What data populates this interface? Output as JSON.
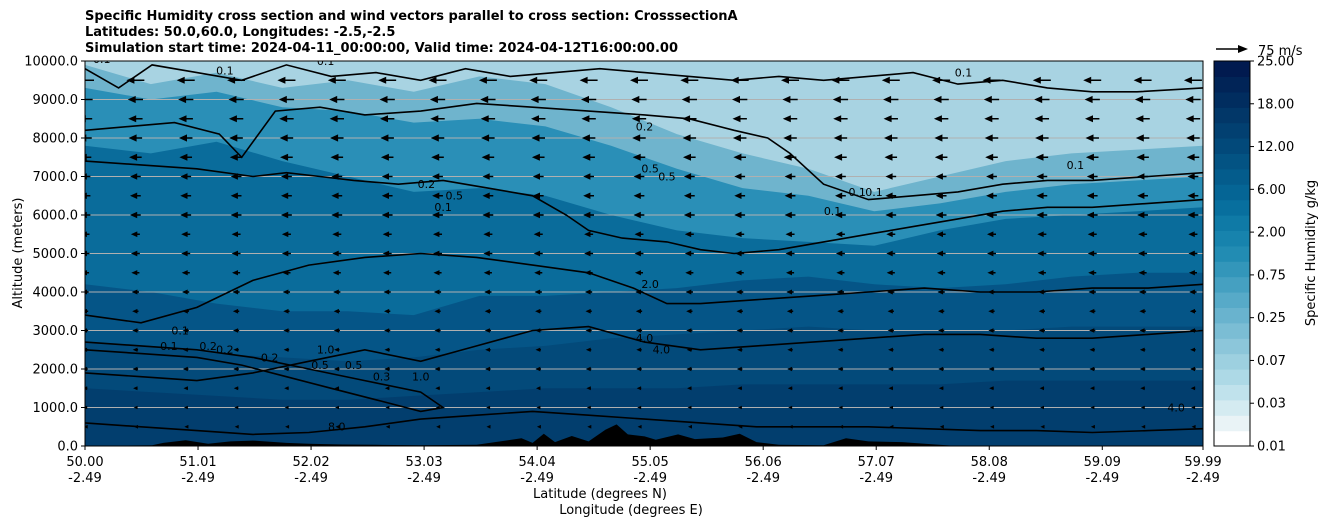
{
  "chart_data": {
    "type": "heatmap",
    "title_lines": [
      "Specific Humidity cross section and wind vectors parallel to cross section: CrosssectionA",
      "Latitudes: 50.0,60.0, Longitudes: -2.5,-2.5",
      "Simulation start time: 2024-04-11_00:00:00, Valid time: 2024-04-12T16:00:00.00"
    ],
    "ylabel": "Altitude (meters)",
    "xlabel_lines": [
      "Latitude (degrees N)",
      "Longitude (degrees E)"
    ],
    "ylim": [
      0,
      10000
    ],
    "yticks": [
      "0.0",
      "1000.0",
      "2000.0",
      "3000.0",
      "4000.0",
      "5000.0",
      "6000.0",
      "7000.0",
      "8000.0",
      "9000.0",
      "10000.0"
    ],
    "xticks": [
      {
        "lat": "50.00",
        "lon": "-2.49"
      },
      {
        "lat": "51.01",
        "lon": "-2.49"
      },
      {
        "lat": "52.02",
        "lon": "-2.49"
      },
      {
        "lat": "53.03",
        "lon": "-2.49"
      },
      {
        "lat": "54.04",
        "lon": "-2.49"
      },
      {
        "lat": "55.05",
        "lon": "-2.49"
      },
      {
        "lat": "56.06",
        "lon": "-2.49"
      },
      {
        "lat": "57.07",
        "lon": "-2.49"
      },
      {
        "lat": "58.08",
        "lon": "-2.49"
      },
      {
        "lat": "59.09",
        "lon": "-2.49"
      },
      {
        "lat": "59.99",
        "lon": "-2.49"
      }
    ],
    "xlim": [
      50.0,
      59.99
    ],
    "grid": "horizontal",
    "colorbar": {
      "label": "Specific Humidity g/kg",
      "tick_labels": [
        "0.01",
        "0.03",
        "0.07",
        "0.25",
        "0.75",
        "2.00",
        "6.00",
        "12.00",
        "18.00",
        "25.00"
      ],
      "colors": [
        "#ffffff",
        "#e9f3f6",
        "#d4ebf1",
        "#c0e2ec",
        "#add9e6",
        "#9dd0e0",
        "#8cc6da",
        "#7bbdd4",
        "#69b3ce",
        "#57aac8",
        "#45a0c1",
        "#3396ba",
        "#228cb3",
        "#1783ad",
        "#0f7aa6",
        "#086f9e",
        "#056595",
        "#045c8c",
        "#035383",
        "#02497a",
        "#024071",
        "#023768",
        "#012d5f",
        "#012457",
        "#011a4f"
      ]
    },
    "wind_reference": "75 m/s",
    "wind_direction": "toward decreasing latitude (southward) at all levels",
    "humidity_layers_g_per_kg": [
      {
        "level": 0.07,
        "alt_m": [
          9900,
          9400,
          9700,
          9300,
          9500,
          9200,
          9600,
          9400,
          8800,
          8100,
          7600,
          7200,
          6600,
          7000,
          7400,
          7600,
          7700,
          7800
        ]
      },
      {
        "level": 0.25,
        "alt_m": [
          9300,
          9000,
          9200,
          8800,
          8700,
          8400,
          8500,
          8300,
          7800,
          7200,
          6700,
          6500,
          6100,
          6300,
          6600,
          6800,
          6900,
          7000
        ]
      },
      {
        "level": 0.75,
        "alt_m": [
          7800,
          7600,
          7900,
          7400,
          7000,
          6600,
          6700,
          6500,
          6000,
          5600,
          5400,
          5300,
          5200,
          5600,
          5900,
          6000,
          6100,
          6200
        ]
      },
      {
        "level": 2.0,
        "alt_m": [
          4200,
          4000,
          3700,
          3500,
          3500,
          3400,
          3900,
          3900,
          4000,
          4100,
          4300,
          4400,
          4200,
          4100,
          4200,
          4400,
          4500,
          4500
        ]
      },
      {
        "level": 4.0,
        "alt_m": [
          2700,
          2600,
          2400,
          2300,
          2200,
          2300,
          2500,
          2600,
          2800,
          2900,
          3000,
          3100,
          3000,
          3000,
          3000,
          3100,
          3100,
          3100
        ]
      },
      {
        "level": 8.0,
        "alt_m": [
          1500,
          1400,
          1300,
          1200,
          1200,
          1300,
          1400,
          1500,
          1500,
          1500,
          1600,
          1600,
          1600,
          1600,
          1700,
          1700,
          1700,
          1700
        ]
      }
    ],
    "contour_lines": [
      {
        "label": "0.1",
        "lat": [
          50.0,
          50.3,
          50.6,
          51.0,
          51.4,
          51.8,
          52.2,
          52.6,
          53.0,
          53.4,
          53.8,
          54.2,
          54.6,
          55.0,
          55.4,
          55.8,
          56.2,
          56.6,
          57.0,
          57.4,
          57.8,
          58.2,
          58.6,
          59.0,
          59.4,
          59.99
        ],
        "alt_m": [
          9800,
          9300,
          9900,
          9700,
          9500,
          9900,
          9600,
          9700,
          9500,
          9800,
          9600,
          9700,
          9800,
          9700,
          9600,
          9500,
          9600,
          9500,
          9600,
          9700,
          9400,
          9500,
          9300,
          9200,
          9200,
          9300
        ]
      },
      {
        "label": "0.2",
        "lat": [
          50.0,
          50.4,
          50.8,
          51.2,
          51.4,
          51.7,
          52.1,
          52.5,
          53.0,
          53.5,
          54.0,
          54.5,
          55.0,
          55.4,
          55.8,
          56.1,
          56.3,
          56.6,
          57.0,
          57.4,
          57.8,
          58.2,
          58.6,
          59.0,
          59.5,
          59.99
        ],
        "alt_m": [
          8200,
          8300,
          8400,
          8100,
          7500,
          8700,
          8800,
          8600,
          8700,
          8900,
          8800,
          8700,
          8600,
          8500,
          8200,
          8000,
          7600,
          6800,
          6400,
          6500,
          6600,
          6800,
          6900,
          6900,
          7000,
          7100
        ]
      },
      {
        "label": "0.5",
        "lat": [
          50.0,
          50.5,
          51.0,
          51.5,
          51.8,
          52.1,
          52.4,
          52.8,
          53.2,
          53.6,
          54.0,
          54.3,
          54.5,
          54.8,
          55.2,
          55.5,
          55.8,
          56.2,
          56.6,
          57.0,
          57.4,
          57.8,
          58.2,
          58.6,
          59.0,
          59.5,
          59.99
        ],
        "alt_m": [
          7400,
          7300,
          7200,
          7000,
          7100,
          7000,
          6900,
          6800,
          6900,
          6700,
          6500,
          6000,
          5600,
          5400,
          5300,
          5100,
          5000,
          5100,
          5300,
          5500,
          5700,
          5900,
          6100,
          6200,
          6200,
          6300,
          6400
        ]
      },
      {
        "label": "2.0",
        "lat": [
          50.0,
          50.5,
          51.0,
          51.5,
          52.0,
          52.5,
          53.0,
          53.5,
          54.0,
          54.5,
          54.9,
          55.2,
          55.5,
          56.0,
          56.5,
          57.0,
          57.5,
          58.0,
          58.5,
          59.0,
          59.5,
          59.99
        ],
        "alt_m": [
          3400,
          3200,
          3600,
          4300,
          4700,
          4900,
          5000,
          4900,
          4700,
          4500,
          4100,
          3700,
          3700,
          3800,
          3900,
          4000,
          4100,
          4000,
          4000,
          4100,
          4100,
          4200
        ]
      },
      {
        "label": "4.0",
        "lat": [
          50.0,
          50.5,
          51.0,
          51.5,
          52.0,
          52.5,
          53.0,
          53.5,
          54.0,
          54.5,
          55.0,
          55.5,
          56.0,
          56.5,
          57.0,
          57.5,
          58.0,
          58.5,
          59.0,
          59.5,
          59.99
        ],
        "alt_m": [
          1900,
          1800,
          1700,
          1900,
          2200,
          2500,
          2200,
          2600,
          3000,
          3100,
          2700,
          2500,
          2600,
          2700,
          2800,
          2900,
          2900,
          2800,
          2800,
          2900,
          3000
        ]
      },
      {
        "label": "1.0",
        "lat": [
          50.0,
          50.5,
          51.0,
          51.5,
          52.0,
          52.5,
          53.0,
          53.2,
          53.0,
          52.6,
          52.2,
          51.8,
          51.4,
          51.0,
          50.5,
          50.0
        ],
        "alt_m": [
          2700,
          2600,
          2500,
          2300,
          2000,
          1700,
          1400,
          1000,
          900,
          1200,
          1500,
          1800,
          2100,
          2300,
          2400,
          2500
        ]
      },
      {
        "label": "8.0",
        "lat": [
          50.0,
          50.5,
          51.0,
          51.5,
          52.0,
          52.5,
          53.0,
          53.5,
          54.0,
          54.5,
          55.0,
          55.5,
          56.0,
          56.5,
          57.0,
          57.5,
          58.0,
          58.5,
          59.0,
          59.5,
          59.99
        ],
        "alt_m": [
          600,
          500,
          400,
          300,
          350,
          500,
          700,
          800,
          900,
          800,
          700,
          600,
          500,
          500,
          500,
          450,
          400,
          400,
          350,
          400,
          450
        ]
      }
    ],
    "contour_labels": [
      {
        "text": "0.1",
        "lat": 50.15,
        "alt_m": 9950
      },
      {
        "text": "0.1",
        "lat": 51.25,
        "alt_m": 9650
      },
      {
        "text": "0.1",
        "lat": 52.15,
        "alt_m": 9900
      },
      {
        "text": "0.2",
        "lat": 55.0,
        "alt_m": 8200
      },
      {
        "text": "0.5",
        "lat": 55.05,
        "alt_m": 7100
      },
      {
        "text": "0.5",
        "lat": 55.2,
        "alt_m": 6900
      },
      {
        "text": "0.1",
        "lat": 57.85,
        "alt_m": 9600
      },
      {
        "text": "0.1",
        "lat": 58.85,
        "alt_m": 7200
      },
      {
        "text": "0.1",
        "lat": 56.9,
        "alt_m": 6500
      },
      {
        "text": "0.1",
        "lat": 57.05,
        "alt_m": 6500
      },
      {
        "text": "0.1",
        "lat": 56.68,
        "alt_m": 6000
      },
      {
        "text": "0.2",
        "lat": 53.05,
        "alt_m": 6700
      },
      {
        "text": "0.5",
        "lat": 53.3,
        "alt_m": 6400
      },
      {
        "text": "0.1",
        "lat": 53.2,
        "alt_m": 6100
      },
      {
        "text": "2.0",
        "lat": 55.05,
        "alt_m": 4100
      },
      {
        "text": "4.0",
        "lat": 55.0,
        "alt_m": 2700
      },
      {
        "text": "4.0",
        "lat": 55.15,
        "alt_m": 2400
      },
      {
        "text": "0.1",
        "lat": 50.85,
        "alt_m": 2900
      },
      {
        "text": "0.1",
        "lat": 50.75,
        "alt_m": 2500
      },
      {
        "text": "0.2",
        "lat": 51.1,
        "alt_m": 2500
      },
      {
        "text": "0.2",
        "lat": 51.25,
        "alt_m": 2400
      },
      {
        "text": "0.2",
        "lat": 51.65,
        "alt_m": 2200
      },
      {
        "text": "1.0",
        "lat": 52.15,
        "alt_m": 2400
      },
      {
        "text": "0.5",
        "lat": 52.4,
        "alt_m": 2000
      },
      {
        "text": "0.5",
        "lat": 52.1,
        "alt_m": 2000
      },
      {
        "text": "0.3",
        "lat": 52.65,
        "alt_m": 1700
      },
      {
        "text": "1.0",
        "lat": 53.0,
        "alt_m": 1700
      },
      {
        "text": "8.0",
        "lat": 52.25,
        "alt_m": 400
      },
      {
        "text": "4.0",
        "lat": 59.75,
        "alt_m": 900
      }
    ],
    "terrain_m": [
      {
        "lat": 50.0,
        "alt_m": 0
      },
      {
        "lat": 50.6,
        "alt_m": 20
      },
      {
        "lat": 50.7,
        "alt_m": 80
      },
      {
        "lat": 50.9,
        "alt_m": 150
      },
      {
        "lat": 51.1,
        "alt_m": 60
      },
      {
        "lat": 51.3,
        "alt_m": 120
      },
      {
        "lat": 51.5,
        "alt_m": 140
      },
      {
        "lat": 51.8,
        "alt_m": 80
      },
      {
        "lat": 52.0,
        "alt_m": 60
      },
      {
        "lat": 52.3,
        "alt_m": 40
      },
      {
        "lat": 52.6,
        "alt_m": 30
      },
      {
        "lat": 53.0,
        "alt_m": 20
      },
      {
        "lat": 53.5,
        "alt_m": 30
      },
      {
        "lat": 53.9,
        "alt_m": 200
      },
      {
        "lat": 54.0,
        "alt_m": 80
      },
      {
        "lat": 54.1,
        "alt_m": 320
      },
      {
        "lat": 54.2,
        "alt_m": 100
      },
      {
        "lat": 54.35,
        "alt_m": 260
      },
      {
        "lat": 54.5,
        "alt_m": 120
      },
      {
        "lat": 54.65,
        "alt_m": 420
      },
      {
        "lat": 54.75,
        "alt_m": 560
      },
      {
        "lat": 54.85,
        "alt_m": 300
      },
      {
        "lat": 55.0,
        "alt_m": 250
      },
      {
        "lat": 55.1,
        "alt_m": 160
      },
      {
        "lat": 55.3,
        "alt_m": 300
      },
      {
        "lat": 55.45,
        "alt_m": 180
      },
      {
        "lat": 55.7,
        "alt_m": 220
      },
      {
        "lat": 55.85,
        "alt_m": 320
      },
      {
        "lat": 56.0,
        "alt_m": 100
      },
      {
        "lat": 56.2,
        "alt_m": 30
      },
      {
        "lat": 56.6,
        "alt_m": 20
      },
      {
        "lat": 56.8,
        "alt_m": 200
      },
      {
        "lat": 57.0,
        "alt_m": 120
      },
      {
        "lat": 57.3,
        "alt_m": 100
      },
      {
        "lat": 57.6,
        "alt_m": 40
      },
      {
        "lat": 57.8,
        "alt_m": 0
      },
      {
        "lat": 59.99,
        "alt_m": 0
      }
    ],
    "wind_rows": [
      {
        "alt_m": 9500,
        "length_scale": 1.0
      },
      {
        "alt_m": 9000,
        "length_scale": 0.85
      },
      {
        "alt_m": 8500,
        "length_scale": 0.8
      },
      {
        "alt_m": 8000,
        "length_scale": 0.75
      },
      {
        "alt_m": 7500,
        "length_scale": 0.7
      },
      {
        "alt_m": 7000,
        "length_scale": 0.6
      },
      {
        "alt_m": 6500,
        "length_scale": 0.6
      },
      {
        "alt_m": 6000,
        "length_scale": 0.6
      },
      {
        "alt_m": 5500,
        "length_scale": 0.5
      },
      {
        "alt_m": 5000,
        "length_scale": 0.5
      },
      {
        "alt_m": 4500,
        "length_scale": 0.45
      },
      {
        "alt_m": 4000,
        "length_scale": 0.4
      },
      {
        "alt_m": 3500,
        "length_scale": 0.35
      },
      {
        "alt_m": 3000,
        "length_scale": 0.35
      },
      {
        "alt_m": 2500,
        "length_scale": 0.3
      },
      {
        "alt_m": 2000,
        "length_scale": 0.3
      },
      {
        "alt_m": 1500,
        "length_scale": 0.25
      },
      {
        "alt_m": 1000,
        "length_scale": 0.2
      },
      {
        "alt_m": 500,
        "length_scale": 0.15
      }
    ],
    "wind_columns_lat": [
      50.0,
      50.45,
      50.9,
      51.35,
      51.8,
      52.25,
      52.7,
      53.15,
      53.6,
      54.05,
      54.5,
      54.95,
      55.4,
      55.85,
      56.3,
      56.75,
      57.2,
      57.65,
      58.1,
      58.55,
      59.0,
      59.45,
      59.9
    ]
  }
}
